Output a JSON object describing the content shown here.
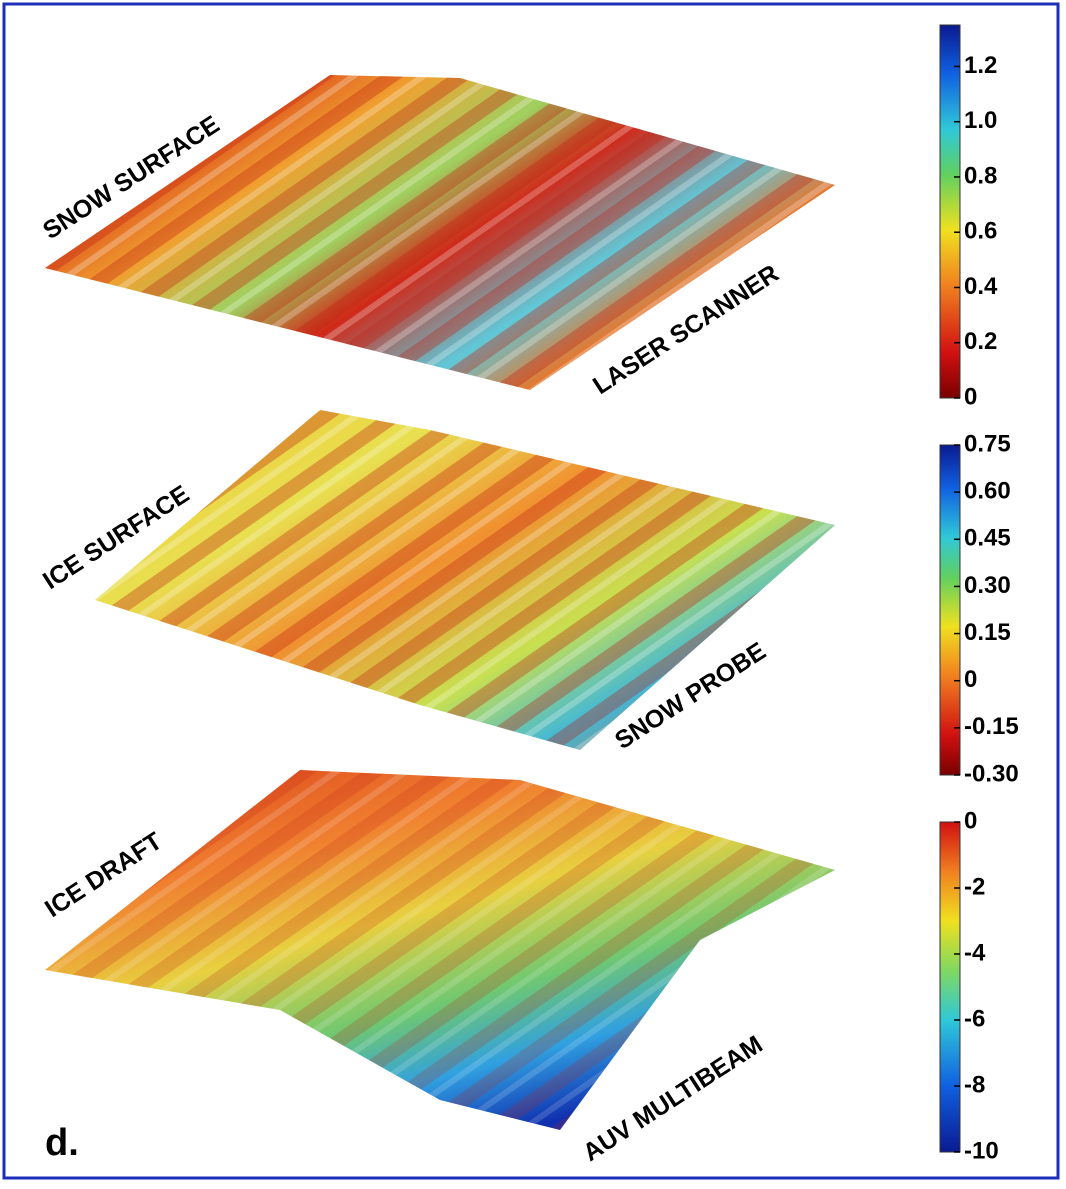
{
  "panel_label": "d.",
  "surfaces": [
    {
      "name": "SNOW SURFACE",
      "instrument": "LASER SCANNER"
    },
    {
      "name": "ICE SURFACE",
      "instrument": "SNOW PROBE"
    },
    {
      "name": "ICE DRAFT",
      "instrument": "AUV MULTIBEAM"
    }
  ],
  "colorbars": [
    {
      "lim": [
        0,
        1.35
      ],
      "ticks": [
        0,
        0.2,
        0.4,
        0.6,
        0.8,
        {
          "value": 1,
          "label": "1.0"
        },
        1.2
      ]
    },
    {
      "lim": [
        -0.3,
        0.75
      ],
      "ticks": [
        {
          "value": -0.3,
          "label": "-0.30"
        },
        -0.15,
        0,
        0.15,
        {
          "value": 0.3,
          "label": "0.30"
        },
        0.45,
        {
          "value": 0.6,
          "label": "0.60"
        },
        0.75
      ]
    },
    {
      "lim": [
        -10,
        0
      ],
      "ticks": [
        -10,
        -8,
        -6,
        -4,
        -2,
        0
      ]
    }
  ]
}
